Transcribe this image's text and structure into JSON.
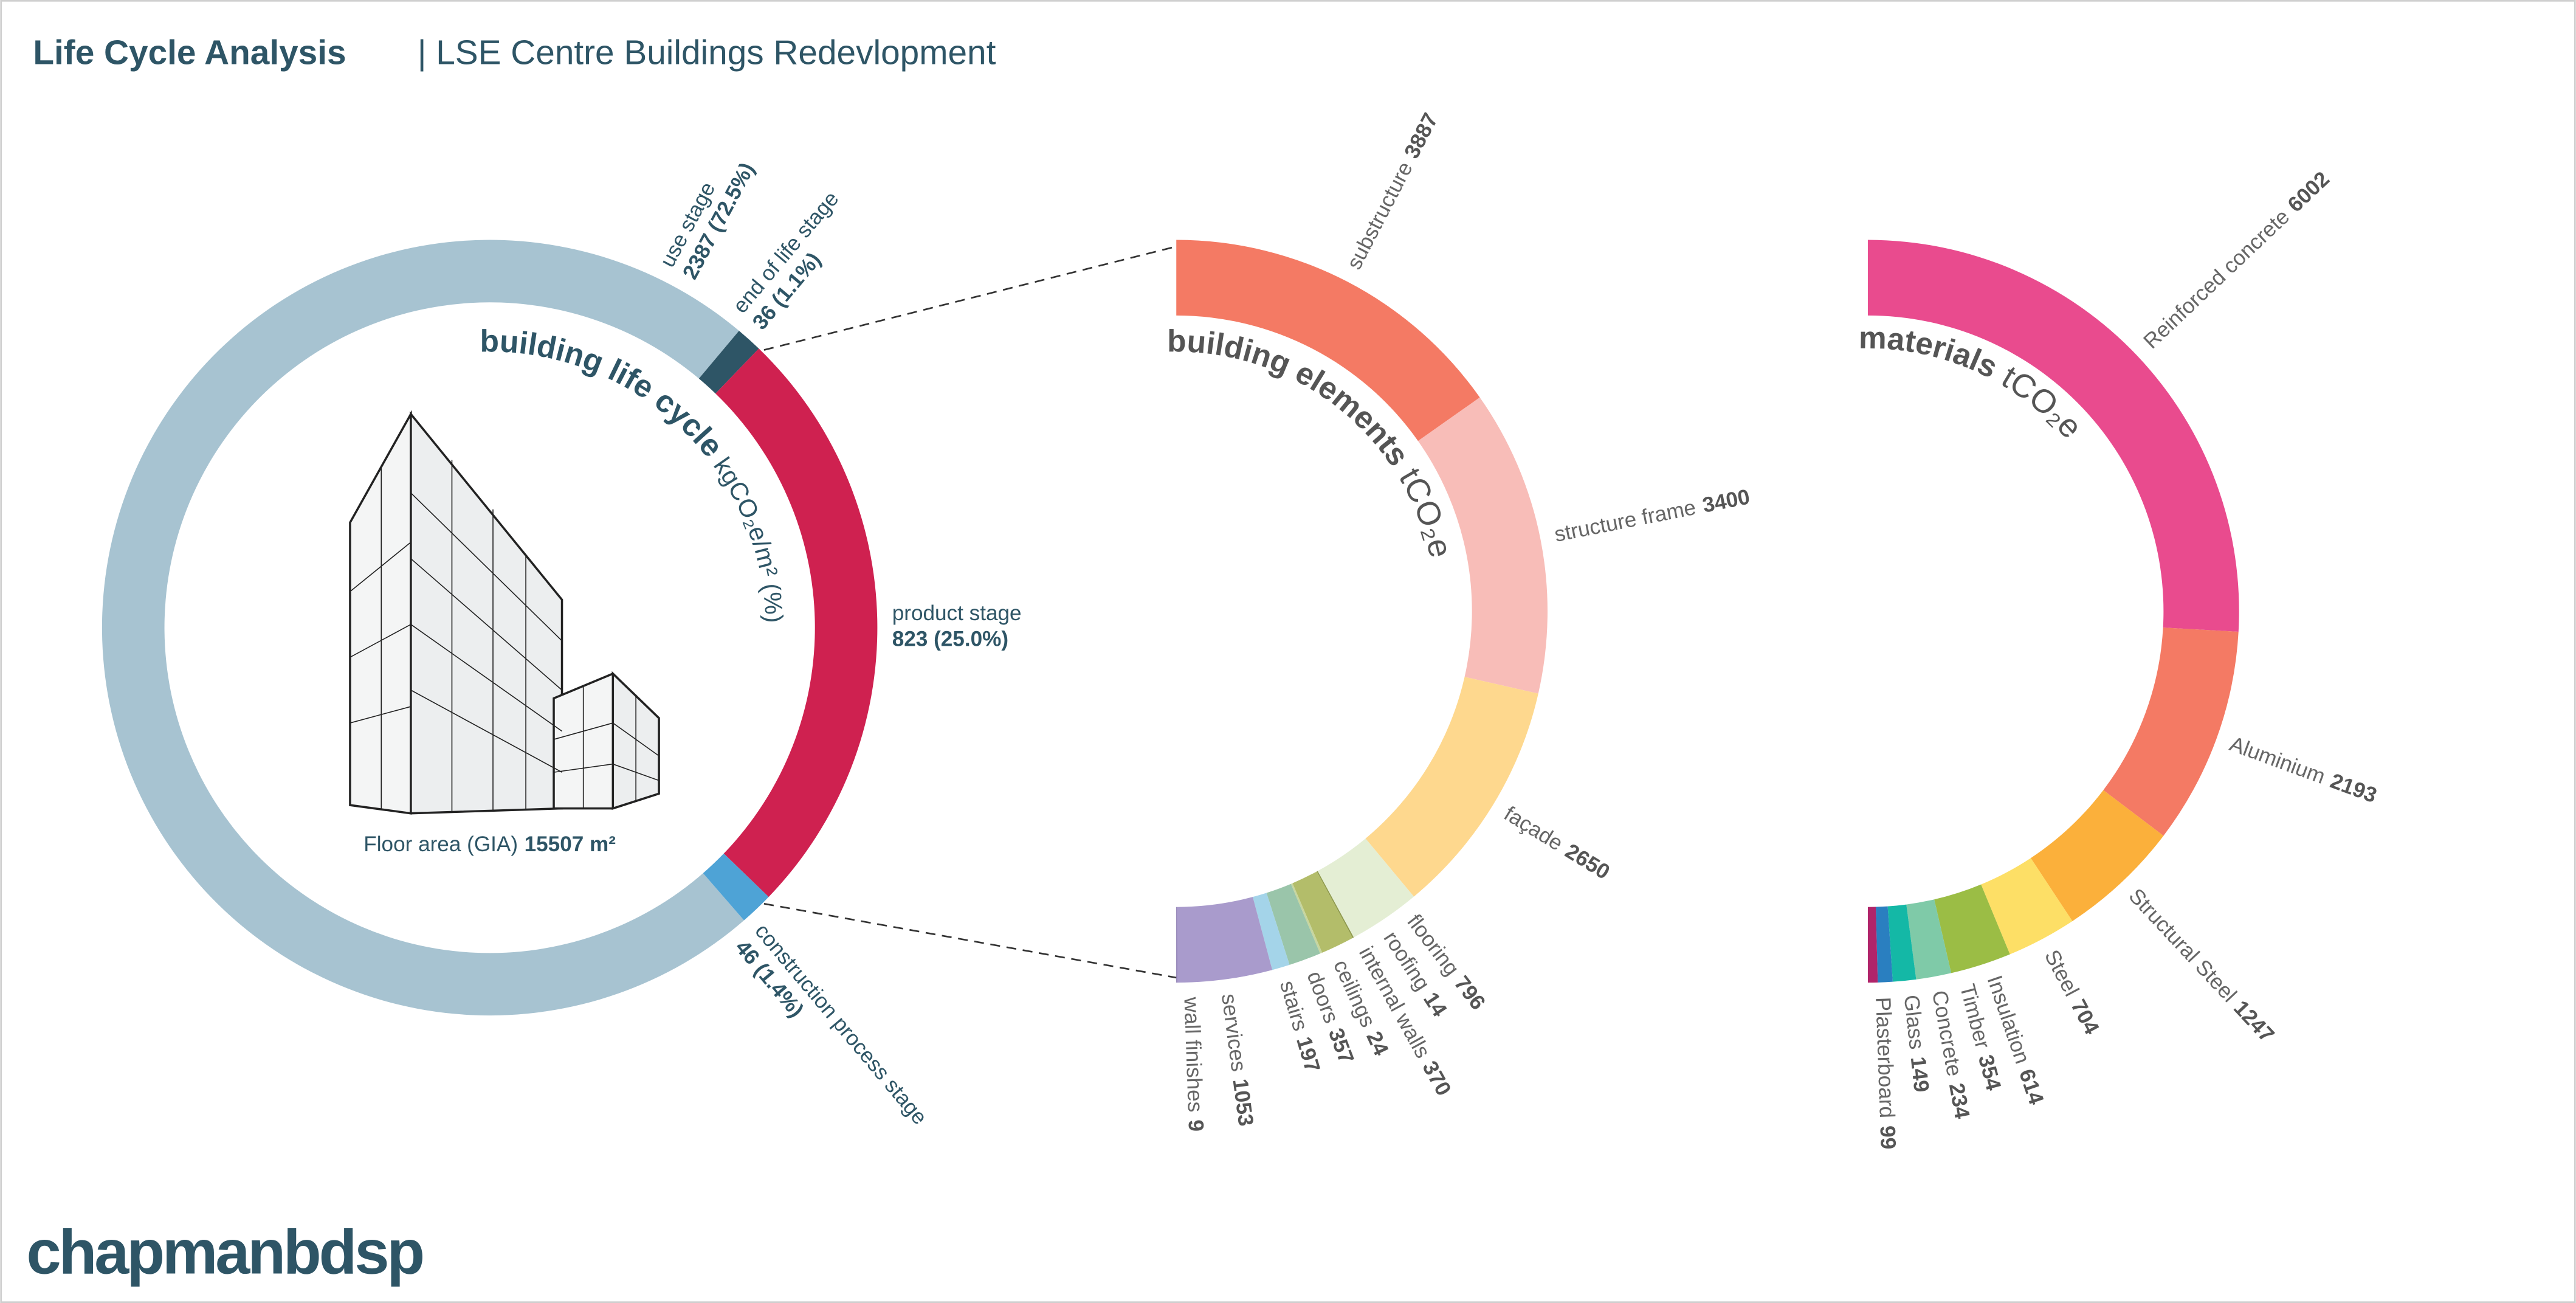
{
  "header": {
    "title": "Life Cycle Analysis",
    "subtitle": "| LSE Centre Buildings Redevlopment"
  },
  "logo": "chapmanbdsp",
  "chart_data": [
    {
      "type": "donut",
      "title": "building life cycle",
      "subtitle": "kgCO₂e/m² (%)",
      "categories": [
        "use stage",
        "end of life stage",
        "product stage",
        "construction process stage"
      ],
      "values": [
        2387,
        36,
        823,
        46
      ],
      "value_labels": [
        "2387 (72.5%)",
        "36 (1.1%)",
        "823 (25.0%)",
        "46 (1.4%)"
      ],
      "colors": [
        "#a7c3d1",
        "#2e5566",
        "#cf2150",
        "#4ea3d6"
      ],
      "floor_area_label": "Floor area (GIA)",
      "floor_area": "15507 m²"
    },
    {
      "type": "half-donut",
      "title": "building elements",
      "subtitle": "tCO₂e",
      "categories": [
        "substructure",
        "structure frame",
        "façade",
        "flooring",
        "roofing",
        "internal walls",
        "ceilings",
        "doors",
        "stairs",
        "services",
        "wall finishes"
      ],
      "values": [
        3887,
        3400,
        2650,
        796,
        14,
        370,
        24,
        357,
        197,
        1053,
        9
      ],
      "colors": [
        "#f47a64",
        "#f8bdb8",
        "#fed88e",
        "#e4eed4",
        "#8f9a4c",
        "#b3bd6a",
        "#c7d6a0",
        "#9ac5aa",
        "#a4d4e9",
        "#a99bcc",
        "#7d6ca8"
      ]
    },
    {
      "type": "half-donut",
      "title": "materials",
      "subtitle": "tCO₂e",
      "categories": [
        "Reinforced concrete",
        "Aluminium",
        "Structural Steel",
        "Steel",
        "Insulation",
        "Timber",
        "Concrete",
        "Glass",
        "Plasterboard"
      ],
      "values": [
        6002,
        2193,
        1247,
        704,
        614,
        354,
        234,
        149,
        99
      ],
      "colors": [
        "#e94b8e",
        "#f47a64",
        "#fbb03b",
        "#fddf66",
        "#9bbd45",
        "#7fcaa8",
        "#14b8a6",
        "#2a7fc0",
        "#b0246a"
      ]
    }
  ]
}
